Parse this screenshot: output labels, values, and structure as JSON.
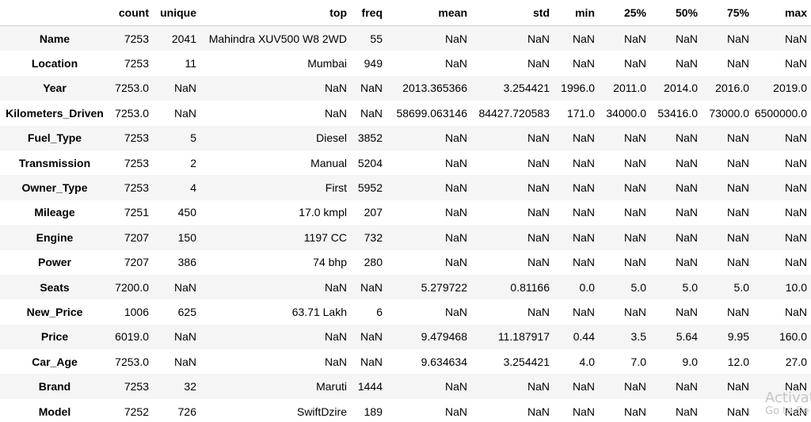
{
  "table": {
    "columns": [
      "",
      "count",
      "unique",
      "top",
      "freq",
      "mean",
      "std",
      "min",
      "25%",
      "50%",
      "75%",
      "max"
    ],
    "rows": [
      {
        "label": "Name",
        "cells": [
          "7253",
          "2041",
          "Mahindra XUV500 W8 2WD",
          "55",
          "NaN",
          "NaN",
          "NaN",
          "NaN",
          "NaN",
          "NaN",
          "NaN"
        ]
      },
      {
        "label": "Location",
        "cells": [
          "7253",
          "11",
          "Mumbai",
          "949",
          "NaN",
          "NaN",
          "NaN",
          "NaN",
          "NaN",
          "NaN",
          "NaN"
        ]
      },
      {
        "label": "Year",
        "cells": [
          "7253.0",
          "NaN",
          "NaN",
          "NaN",
          "2013.365366",
          "3.254421",
          "1996.0",
          "2011.0",
          "2014.0",
          "2016.0",
          "2019.0"
        ]
      },
      {
        "label": "Kilometers_Driven",
        "cells": [
          "7253.0",
          "NaN",
          "NaN",
          "NaN",
          "58699.063146",
          "84427.720583",
          "171.0",
          "34000.0",
          "53416.0",
          "73000.0",
          "6500000.0"
        ]
      },
      {
        "label": "Fuel_Type",
        "cells": [
          "7253",
          "5",
          "Diesel",
          "3852",
          "NaN",
          "NaN",
          "NaN",
          "NaN",
          "NaN",
          "NaN",
          "NaN"
        ]
      },
      {
        "label": "Transmission",
        "cells": [
          "7253",
          "2",
          "Manual",
          "5204",
          "NaN",
          "NaN",
          "NaN",
          "NaN",
          "NaN",
          "NaN",
          "NaN"
        ]
      },
      {
        "label": "Owner_Type",
        "cells": [
          "7253",
          "4",
          "First",
          "5952",
          "NaN",
          "NaN",
          "NaN",
          "NaN",
          "NaN",
          "NaN",
          "NaN"
        ]
      },
      {
        "label": "Mileage",
        "cells": [
          "7251",
          "450",
          "17.0 kmpl",
          "207",
          "NaN",
          "NaN",
          "NaN",
          "NaN",
          "NaN",
          "NaN",
          "NaN"
        ]
      },
      {
        "label": "Engine",
        "cells": [
          "7207",
          "150",
          "1197 CC",
          "732",
          "NaN",
          "NaN",
          "NaN",
          "NaN",
          "NaN",
          "NaN",
          "NaN"
        ]
      },
      {
        "label": "Power",
        "cells": [
          "7207",
          "386",
          "74 bhp",
          "280",
          "NaN",
          "NaN",
          "NaN",
          "NaN",
          "NaN",
          "NaN",
          "NaN"
        ]
      },
      {
        "label": "Seats",
        "cells": [
          "7200.0",
          "NaN",
          "NaN",
          "NaN",
          "5.279722",
          "0.81166",
          "0.0",
          "5.0",
          "5.0",
          "5.0",
          "10.0"
        ]
      },
      {
        "label": "New_Price",
        "cells": [
          "1006",
          "625",
          "63.71 Lakh",
          "6",
          "NaN",
          "NaN",
          "NaN",
          "NaN",
          "NaN",
          "NaN",
          "NaN"
        ]
      },
      {
        "label": "Price",
        "cells": [
          "6019.0",
          "NaN",
          "NaN",
          "NaN",
          "9.479468",
          "11.187917",
          "0.44",
          "3.5",
          "5.64",
          "9.95",
          "160.0"
        ]
      },
      {
        "label": "Car_Age",
        "cells": [
          "7253.0",
          "NaN",
          "NaN",
          "NaN",
          "9.634634",
          "3.254421",
          "4.0",
          "7.0",
          "9.0",
          "12.0",
          "27.0"
        ]
      },
      {
        "label": "Brand",
        "cells": [
          "7253",
          "32",
          "Maruti",
          "1444",
          "NaN",
          "NaN",
          "NaN",
          "NaN",
          "NaN",
          "NaN",
          "NaN"
        ]
      },
      {
        "label": "Model",
        "cells": [
          "7252",
          "726",
          "SwiftDzire",
          "189",
          "NaN",
          "NaN",
          "NaN",
          "NaN",
          "NaN",
          "NaN",
          "NaN"
        ]
      }
    ]
  },
  "watermark": {
    "line1": "Activat",
    "line2": "Go to Se"
  }
}
